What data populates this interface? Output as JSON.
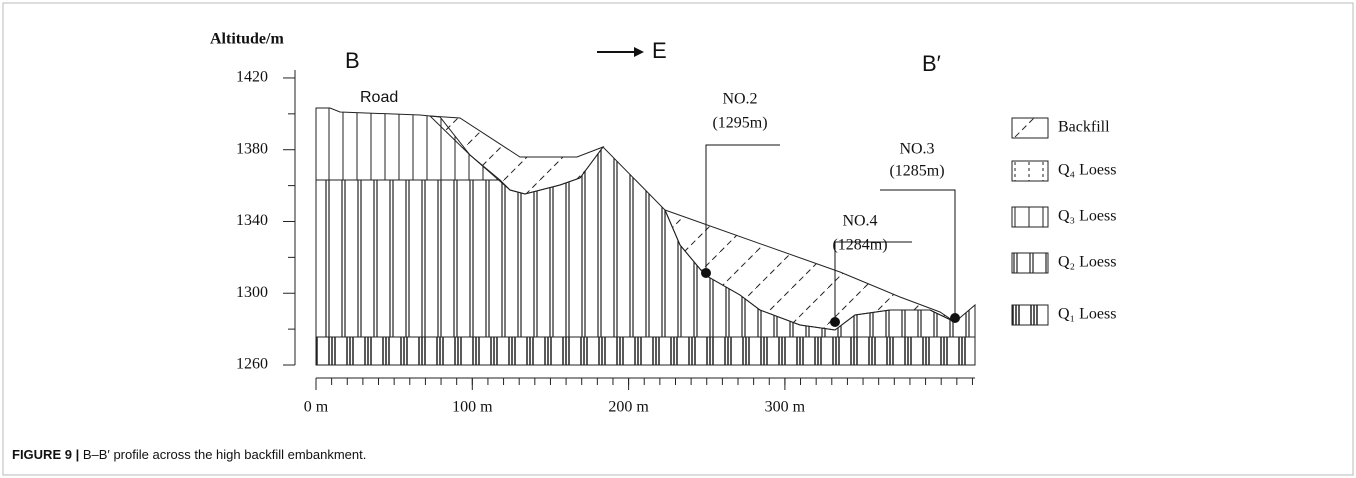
{
  "profile": {
    "axis_title": "Altitude/m",
    "yticks": [
      1260,
      1300,
      1340,
      1380,
      1420
    ],
    "xticks": [
      {
        "value": 0,
        "label": "0 m"
      },
      {
        "value": 100,
        "label": "100 m"
      },
      {
        "value": 200,
        "label": "200 m"
      },
      {
        "value": 300,
        "label": "300 m"
      }
    ],
    "start_label": "B",
    "end_label": "B′",
    "direction": "E",
    "road": "Road",
    "wells": [
      {
        "name": "NO.2",
        "elevation": "(1295m)"
      },
      {
        "name": "NO.3",
        "elevation": "(1285m)"
      },
      {
        "name": "NO.4",
        "elevation": "(1284m)"
      }
    ]
  },
  "legend": [
    "Backfill",
    "Q₄ Loess",
    "Q₃ Loess",
    "Q₂ Loess",
    "Q₁ Loess"
  ],
  "caption": {
    "label": "FIGURE 9 |",
    "text": "B–B′ profile across the high backfill embankment."
  }
}
